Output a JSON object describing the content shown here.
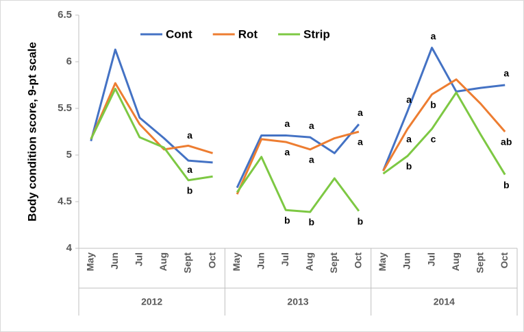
{
  "chart_data": {
    "type": "line",
    "ylabel": "Body condition score, 9-pt scale",
    "categories": [
      "May",
      "Jun",
      "Jul",
      "Aug",
      "Sept",
      "Oct",
      "May",
      "Jun",
      "Jul",
      "Aug",
      "Sept",
      "Oct",
      "May",
      "Jun",
      "Jul",
      "Aug",
      "Sept",
      "Oct"
    ],
    "groups": [
      "2012",
      "2013",
      "2014"
    ],
    "ylim": [
      4,
      6.5
    ],
    "yticks": [
      4,
      4.5,
      5,
      5.5,
      6,
      6.5
    ],
    "legend": "top",
    "series": [
      {
        "name": "Cont",
        "color": "#4472c4",
        "values": [
          5.15,
          6.13,
          5.4,
          5.18,
          4.94,
          4.92,
          4.65,
          5.21,
          5.21,
          5.19,
          5.02,
          5.33,
          4.83,
          5.47,
          6.15,
          5.68,
          5.72,
          5.75
        ],
        "letters": [
          null,
          null,
          null,
          null,
          "a",
          null,
          null,
          null,
          "a",
          "a",
          null,
          "a",
          null,
          "a",
          "a",
          null,
          null,
          "a"
        ]
      },
      {
        "name": "Rot",
        "color": "#ed7d31",
        "values": [
          5.17,
          5.77,
          5.33,
          5.06,
          5.1,
          5.02,
          4.58,
          5.17,
          5.14,
          5.06,
          5.18,
          5.25,
          4.83,
          5.28,
          5.65,
          5.81,
          5.55,
          5.25
        ],
        "letters": [
          null,
          null,
          null,
          null,
          "a",
          null,
          null,
          null,
          "a",
          "a",
          null,
          "a",
          null,
          "a",
          "b",
          null,
          null,
          "ab"
        ]
      },
      {
        "name": "Strip",
        "color": "#7dc843",
        "values": [
          5.17,
          5.71,
          5.19,
          5.08,
          4.73,
          4.77,
          4.6,
          4.98,
          4.41,
          4.39,
          4.75,
          4.4,
          4.8,
          4.99,
          5.28,
          5.67,
          5.22,
          4.79
        ],
        "letters": [
          null,
          null,
          null,
          null,
          "b",
          null,
          null,
          null,
          "b",
          "b",
          null,
          "b",
          null,
          "b",
          "c",
          null,
          null,
          "b"
        ]
      }
    ]
  }
}
